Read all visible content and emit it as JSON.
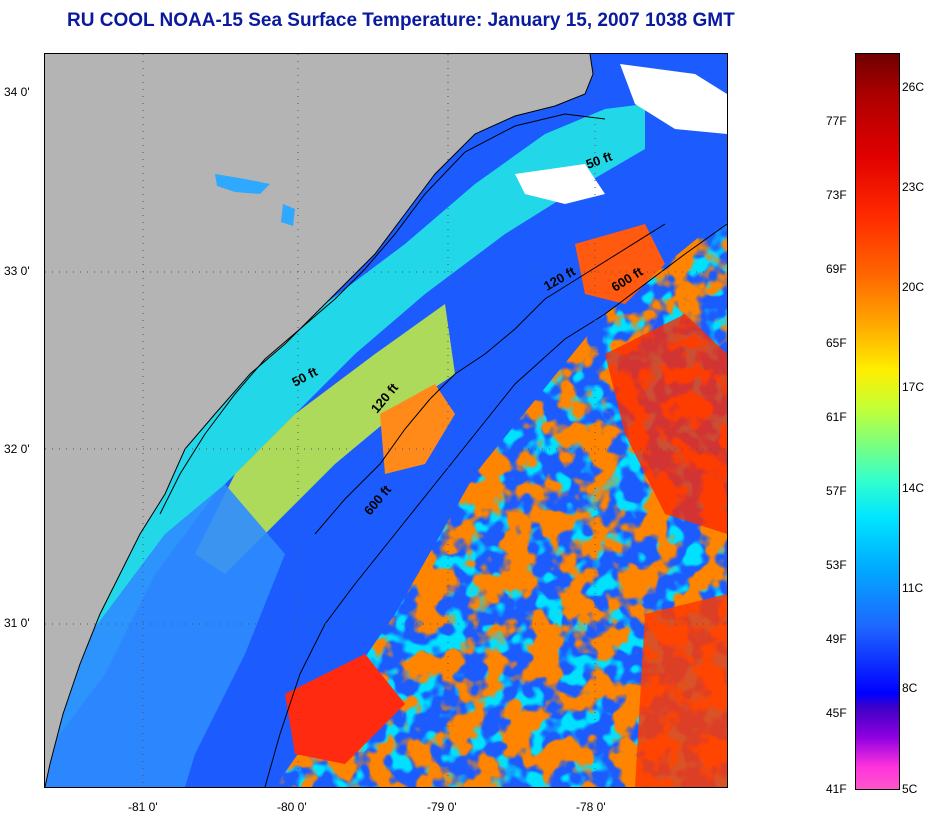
{
  "title": "RU COOL  NOAA-15  Sea Surface Temperature:  January 15, 2007 1038 GMT",
  "map": {
    "lat_labels": [
      "34 0'",
      "33 0'",
      "32 0'",
      "31 0'"
    ],
    "lon_labels": [
      "-81 0'",
      "-80 0'",
      "-79 0'",
      "-78 0'"
    ],
    "isobath_labels": [
      "50 ft",
      "120 ft",
      "600 ft",
      "50 ft",
      "120 ft",
      "600 ft"
    ],
    "colors": {
      "land": "#b4b4b4",
      "cold_water": "#1c5cff",
      "mid_water": "#00c8ff",
      "warm_water": "#ff3a00",
      "cloud": "#ffffff"
    }
  },
  "colorbar": {
    "fahrenheit": [
      "77F",
      "73F",
      "69F",
      "65F",
      "61F",
      "57F",
      "53F",
      "49F",
      "45F",
      "41F"
    ],
    "celsius": [
      "26C",
      "23C",
      "20C",
      "17C",
      "14C",
      "11C",
      "8C",
      "5C"
    ]
  }
}
